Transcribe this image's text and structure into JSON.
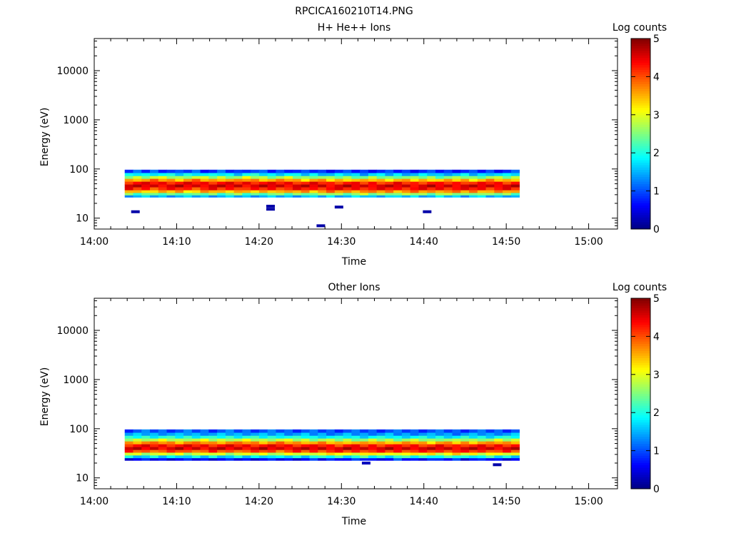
{
  "page_title": "RPCICA160210T14.PNG",
  "panels": [
    {
      "title": "H+ He++ Ions",
      "ylabel": "Energy (eV)",
      "xlabel": "Time",
      "colorbar_label": "Log counts",
      "colorbar_ticks": [
        "0",
        "1",
        "2",
        "3",
        "4",
        "5"
      ],
      "ytick_labels": [
        "10",
        "100",
        "1000",
        "10000"
      ],
      "xtick_labels": [
        "14:00",
        "14:10",
        "14:20",
        "14:30",
        "14:40",
        "14:50",
        "15:00"
      ]
    },
    {
      "title": "Other Ions",
      "ylabel": "Energy (eV)",
      "xlabel": "Time",
      "colorbar_label": "Log counts",
      "colorbar_ticks": [
        "0",
        "1",
        "2",
        "3",
        "4",
        "5"
      ],
      "ytick_labels": [
        "10",
        "100",
        "1000",
        "10000"
      ],
      "xtick_labels": [
        "14:00",
        "14:10",
        "14:20",
        "14:30",
        "14:40",
        "14:50",
        "15:00"
      ]
    }
  ],
  "chart_data": [
    {
      "type": "heatmap",
      "title": "H+ He++ Ions",
      "xlabel": "Time",
      "ylabel": "Energy (eV)",
      "colorbar_label": "Log counts",
      "x_ticks": [
        "14:00",
        "14:10",
        "14:20",
        "14:30",
        "14:40",
        "14:50",
        "15:00"
      ],
      "x_range_minutes": [
        0,
        63.5
      ],
      "y_scale": "log",
      "y_range": [
        6,
        45000
      ],
      "y_ticks": [
        10,
        100,
        1000,
        10000
      ],
      "z_range": [
        0,
        5
      ],
      "colormap": "jet",
      "data_time_span_minutes": [
        3.7,
        51.6
      ],
      "energy_rows_eV": [
        28,
        31,
        35,
        40,
        46,
        52,
        60,
        68,
        78,
        90
      ],
      "profile_log_counts": [
        1.5,
        2.5,
        3.6,
        4.3,
        4.6,
        4.3,
        3.5,
        2.6,
        1.7,
        0.8
      ],
      "column_peak_shift": [
        0.0,
        0.2,
        0.1,
        0.3,
        0.2,
        0.1,
        0.0,
        0.2,
        0.3,
        0.1,
        0.0,
        0.2,
        0.1,
        0.0,
        0.3,
        0.2,
        0.1,
        0.0,
        0.1,
        0.2,
        0.0,
        -0.1,
        0.1,
        0.0,
        -0.2,
        -0.1,
        0.0,
        -0.1,
        -0.2,
        0.0,
        -0.1,
        -0.2,
        0.0,
        -0.1,
        -0.2,
        -0.1,
        0.0,
        -0.2,
        -0.1,
        -0.1,
        0.0,
        -0.2,
        -0.1,
        0.1,
        0.0,
        -0.1,
        0.1
      ],
      "sparse_points": [
        {
          "t_min": 5.0,
          "energy_eV": 13.5,
          "log_counts": 0.2
        },
        {
          "t_min": 21.4,
          "energy_eV": 17.5,
          "log_counts": 0.2
        },
        {
          "t_min": 21.4,
          "energy_eV": 15.2,
          "log_counts": 0.2
        },
        {
          "t_min": 27.5,
          "energy_eV": 7.0,
          "log_counts": 0.2
        },
        {
          "t_min": 29.7,
          "energy_eV": 16.8,
          "log_counts": 0.2
        },
        {
          "t_min": 40.4,
          "energy_eV": 13.5,
          "log_counts": 0.2
        }
      ]
    },
    {
      "type": "heatmap",
      "title": "Other Ions",
      "xlabel": "Time",
      "ylabel": "Energy (eV)",
      "colorbar_label": "Log counts",
      "x_ticks": [
        "14:00",
        "14:10",
        "14:20",
        "14:30",
        "14:40",
        "14:50",
        "15:00"
      ],
      "x_range_minutes": [
        0,
        63.5
      ],
      "y_scale": "log",
      "y_range": [
        6,
        45000
      ],
      "y_ticks": [
        10,
        100,
        1000,
        10000
      ],
      "z_range": [
        0,
        5
      ],
      "colormap": "jet",
      "data_time_span_minutes": [
        3.7,
        51.6
      ],
      "energy_rows_eV": [
        24,
        27,
        31,
        35,
        40,
        46,
        52,
        60,
        68,
        78,
        90
      ],
      "profile_log_counts": [
        0.6,
        1.9,
        3.0,
        4.1,
        4.6,
        4.3,
        3.6,
        2.7,
        1.9,
        1.4,
        1.0
      ],
      "column_peak_shift": [
        0.0,
        0.1,
        0.2,
        0.1,
        0.2,
        0.1,
        0.0,
        0.2,
        0.1,
        0.2,
        0.0,
        0.1,
        0.2,
        0.1,
        0.2,
        0.1,
        0.0,
        0.1,
        0.2,
        0.1,
        0.0,
        0.1,
        -0.1,
        0.0,
        -0.1,
        -0.2,
        0.0,
        -0.1,
        -0.2,
        0.0,
        -0.1,
        0.0,
        -0.2,
        -0.1,
        0.0,
        -0.1,
        -0.2,
        0.0,
        -0.1,
        -0.2,
        0.0,
        -0.1,
        0.0,
        -0.1,
        0.1,
        0.0,
        0.1
      ],
      "sparse_points": [
        {
          "t_min": 33.0,
          "energy_eV": 20.0,
          "log_counts": 0.3
        },
        {
          "t_min": 48.9,
          "energy_eV": 18.5,
          "log_counts": 0.2
        }
      ]
    }
  ]
}
